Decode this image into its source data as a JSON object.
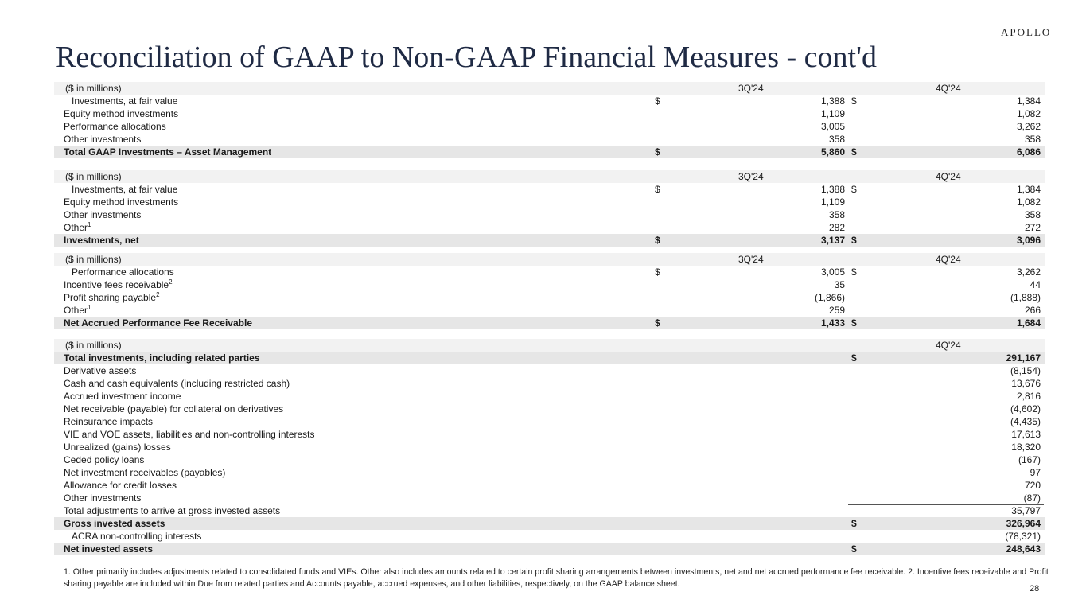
{
  "title": "Reconciliation of GAAP to Non-GAAP Financial Measures - cont'd",
  "logo": "APOLLO",
  "sections": [
    {
      "header": {
        "label": "($ in millions)",
        "cols": [
          "3Q'24",
          "4Q'24"
        ]
      },
      "rows": [
        {
          "label": "Investments, at fair value",
          "indent": true,
          "d1": "$",
          "v1": "1,388",
          "d2": "$",
          "v2": "1,384"
        },
        {
          "label": "Equity method investments",
          "v1": "1,109",
          "v2": "1,082"
        },
        {
          "label": "Performance allocations",
          "v1": "3,005",
          "v2": "3,262"
        },
        {
          "label": "Other investments",
          "v1": "358",
          "v2": "358"
        },
        {
          "label": "Total GAAP Investments – Asset Management",
          "total": true,
          "d1": "$",
          "v1": "5,860",
          "d2": "$",
          "v2": "6,086"
        }
      ]
    },
    {
      "header": {
        "label": "($ in millions)",
        "cols": [
          "3Q'24",
          "4Q'24"
        ]
      },
      "rows": [
        {
          "label": "Investments, at fair value",
          "indent": true,
          "d1": "$",
          "v1": "1,388",
          "d2": "$",
          "v2": "1,384"
        },
        {
          "label": "Equity method investments",
          "v1": "1,109",
          "v2": "1,082"
        },
        {
          "label": "Other investments",
          "v1": "358",
          "v2": "358"
        },
        {
          "label": "Other",
          "sup": "1",
          "v1": "282",
          "v2": "272"
        },
        {
          "label": "Investments, net",
          "total": true,
          "d1": "$",
          "v1": "3,137",
          "d2": "$",
          "v2": "3,096"
        }
      ]
    },
    {
      "header": {
        "label": "($ in millions)",
        "cols": [
          "3Q'24",
          "4Q'24"
        ]
      },
      "rows": [
        {
          "label": "Performance allocations",
          "indent": true,
          "d1": "$",
          "v1": "3,005",
          "d2": "$",
          "v2": "3,262"
        },
        {
          "label": "Incentive fees receivable",
          "sup": "2",
          "v1": "35",
          "v2": "44"
        },
        {
          "label": "Profit sharing payable",
          "sup": "2",
          "v1": "(1,866)",
          "v2": "(1,888)"
        },
        {
          "label": "Other",
          "sup": "1",
          "v1": "259",
          "v2": "266"
        },
        {
          "label": "Net Accrued Performance Fee Receivable",
          "total": true,
          "d1": "$",
          "v1": "1,433",
          "d2": "$",
          "v2": "1,684"
        }
      ]
    },
    {
      "header": {
        "label": "($ in millions)",
        "cols": [
          "",
          "4Q'24"
        ]
      },
      "rows": [
        {
          "label": "Total investments, including related parties",
          "total": true,
          "d2": "$",
          "v2": "291,167"
        },
        {
          "label": "Derivative assets",
          "v2": "(8,154)"
        },
        {
          "label": "Cash and cash equivalents (including restricted cash)",
          "v2": "13,676"
        },
        {
          "label": "Accrued investment income",
          "v2": "2,816"
        },
        {
          "label": "Net receivable (payable) for collateral on derivatives",
          "v2": "(4,602)"
        },
        {
          "label": "Reinsurance impacts",
          "v2": "(4,435)"
        },
        {
          "label": "VIE and VOE assets, liabilities and non-controlling interests",
          "v2": "17,613"
        },
        {
          "label": "Unrealized (gains) losses",
          "v2": "18,320"
        },
        {
          "label": "Ceded policy loans",
          "v2": "(167)"
        },
        {
          "label": "Net investment receivables (payables)",
          "v2": "97"
        },
        {
          "label": "Allowance for credit losses",
          "v2": "720"
        },
        {
          "label": "Other investments",
          "v2": "(87)"
        },
        {
          "label": "Total adjustments to arrive at gross invested assets",
          "rule": true,
          "v2": "35,797"
        },
        {
          "label": "Gross invested assets",
          "total": true,
          "d2": "$",
          "v2": "326,964"
        },
        {
          "label": "ACRA non-controlling interests",
          "indent": true,
          "v2": "(78,321)"
        },
        {
          "label": "Net invested assets",
          "total": true,
          "d2": "$",
          "v2": "248,643"
        }
      ]
    }
  ],
  "footnote": "1. Other primarily includes adjustments related to consolidated funds and VIEs. Other also includes amounts related to certain profit sharing arrangements between investments, net and net accrued performance fee receivable. 2. Incentive fees receivable and Profit sharing payable are included within Due from related parties and Accounts payable, accrued expenses, and other liabilities, respectively, on the GAAP balance sheet.",
  "page_number": "28"
}
